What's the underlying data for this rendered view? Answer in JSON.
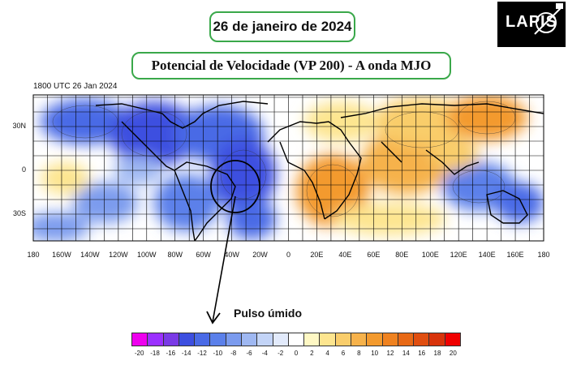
{
  "header": {
    "date": "26 de janeiro de 2024",
    "title": "Potencial de Velocidade (VP 200) - A onda MJO"
  },
  "logo": {
    "text": "LAPIS"
  },
  "map": {
    "timestamp": "1800 UTC 26 Jan 2024",
    "lat_ticks": [
      "30N",
      "0",
      "30S"
    ],
    "lon_ticks": [
      "180",
      "160W",
      "140W",
      "120W",
      "100W",
      "80W",
      "60W",
      "40W",
      "20W",
      "0",
      "20E",
      "40E",
      "60E",
      "80E",
      "100E",
      "120E",
      "140E",
      "160E",
      "180"
    ]
  },
  "annotation": {
    "label": "Pulso úmido"
  },
  "colorbar": {
    "labels": [
      "-20",
      "-18",
      "-16",
      "-14",
      "-12",
      "-10",
      "-8",
      "-6",
      "-4",
      "-2",
      "0",
      "2",
      "4",
      "6",
      "8",
      "10",
      "12",
      "14",
      "16",
      "18",
      "20"
    ],
    "colors": [
      "#ee00ee",
      "#9b30ff",
      "#7a3ae6",
      "#3d4fe0",
      "#4a6ae6",
      "#5b80ea",
      "#7b9bee",
      "#9fb8f2",
      "#c3d4f7",
      "#e2eafb",
      "#ffffff",
      "#fff8c4",
      "#fde58f",
      "#f9cd6b",
      "#f6b24b",
      "#f39a2e",
      "#ef8220",
      "#e86916",
      "#e04e10",
      "#d8330b",
      "#f00000"
    ]
  },
  "colors": {
    "frame": "#3aa84a",
    "negative": "#4a6ae6",
    "positive": "#f39a2e"
  }
}
